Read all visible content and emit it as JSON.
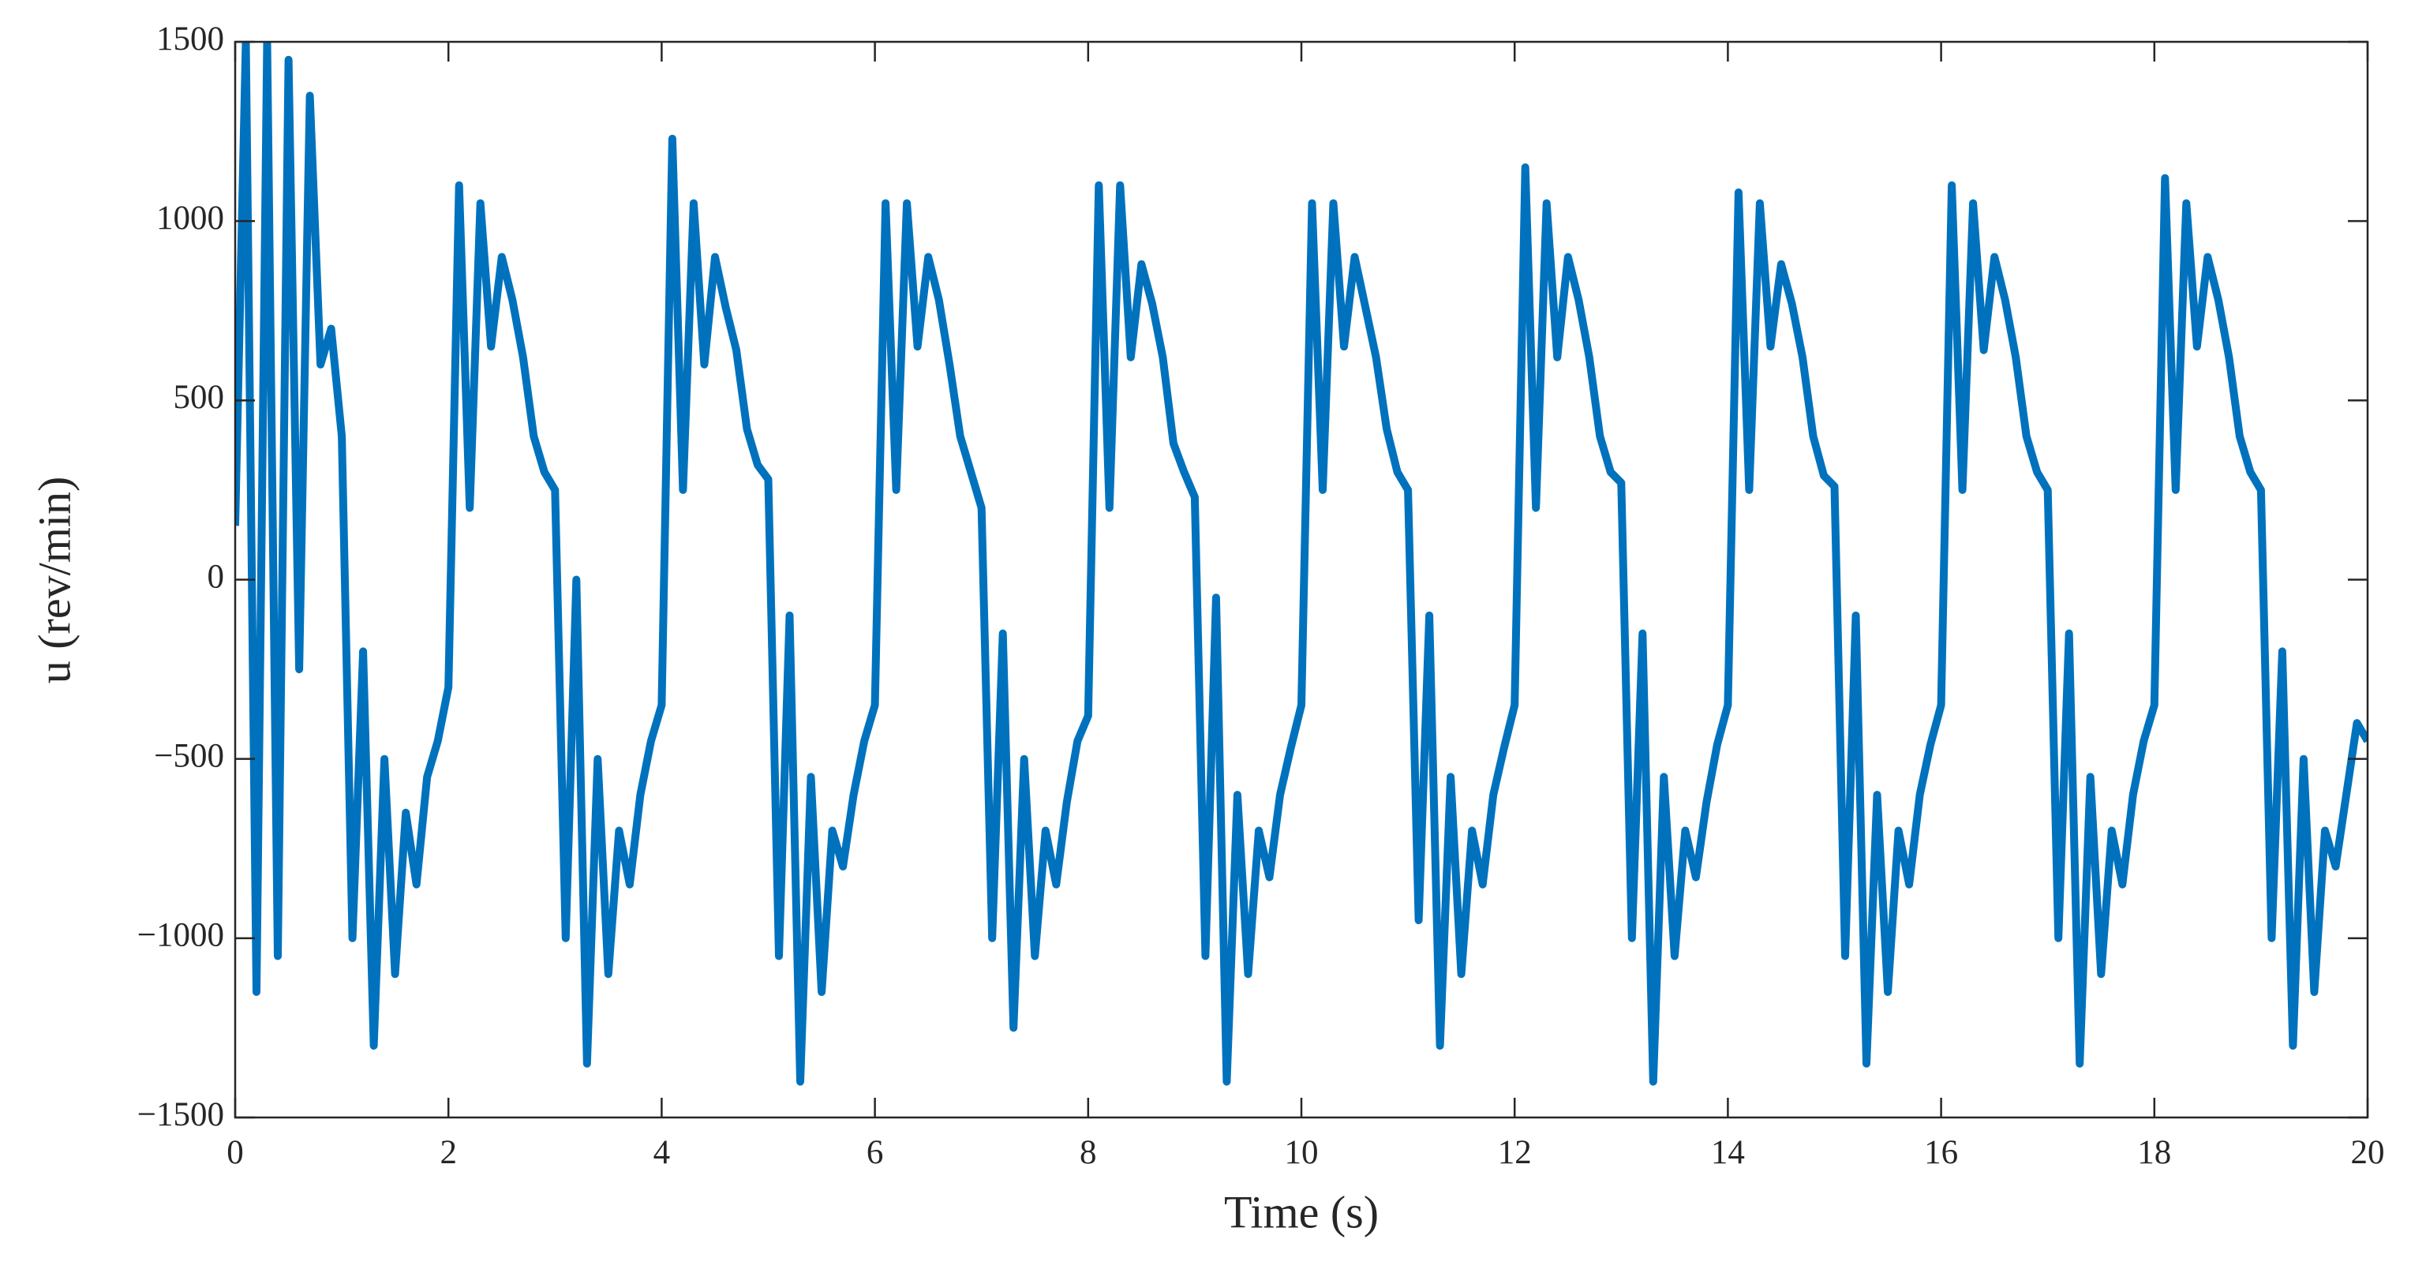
{
  "chart_data": {
    "type": "line",
    "xlabel": "Time (s)",
    "ylabel": "u (rev/min)",
    "color": "#0072bd",
    "xlim": [
      0,
      20
    ],
    "xticks": [
      0,
      2,
      4,
      6,
      8,
      10,
      12,
      14,
      16,
      18,
      20
    ],
    "ylim": [
      -1500,
      1500
    ],
    "yticks": [
      {
        "value": -1500,
        "label": "−1500"
      },
      {
        "value": -1000,
        "label": "−1000"
      },
      {
        "value": -500,
        "label": "−500"
      },
      0,
      500,
      1000,
      1500
    ],
    "x": [
      0,
      0.1,
      0.2,
      0.3,
      0.4,
      0.5,
      0.6,
      0.7,
      0.8,
      0.9,
      1,
      1.1,
      1.2,
      1.3,
      1.4,
      1.5,
      1.6,
      1.7,
      1.8,
      1.9,
      2,
      2.1,
      2.2,
      2.3,
      2.4,
      2.5,
      2.6,
      2.7,
      2.8,
      2.9,
      3,
      3.1,
      3.2,
      3.3,
      3.4,
      3.5,
      3.6,
      3.7,
      3.8,
      3.9,
      4,
      4.1,
      4.2,
      4.3,
      4.4,
      4.5,
      4.6,
      4.7,
      4.8,
      4.9,
      5,
      5.1,
      5.2,
      5.3,
      5.4,
      5.5,
      5.6,
      5.7,
      5.8,
      5.9,
      6,
      6.1,
      6.2,
      6.3,
      6.4,
      6.5,
      6.6,
      6.7,
      6.8,
      6.9,
      7,
      7.1,
      7.2,
      7.3,
      7.4,
      7.5,
      7.6,
      7.7,
      7.8,
      7.9,
      8,
      8.1,
      8.2,
      8.3,
      8.4,
      8.5,
      8.6,
      8.7,
      8.8,
      8.9,
      9,
      9.1,
      9.2,
      9.3,
      9.4,
      9.5,
      9.6,
      9.7,
      9.8,
      9.9,
      10,
      10.1,
      10.2,
      10.3,
      10.4,
      10.5,
      10.6,
      10.7,
      10.8,
      10.9,
      11,
      11.1,
      11.2,
      11.3,
      11.4,
      11.5,
      11.6,
      11.7,
      11.8,
      11.9,
      12,
      12.1,
      12.2,
      12.3,
      12.4,
      12.5,
      12.6,
      12.7,
      12.8,
      12.9,
      13,
      13.1,
      13.2,
      13.3,
      13.4,
      13.5,
      13.6,
      13.7,
      13.8,
      13.9,
      14,
      14.1,
      14.2,
      14.3,
      14.4,
      14.5,
      14.6,
      14.7,
      14.8,
      14.9,
      15,
      15.1,
      15.2,
      15.3,
      15.4,
      15.5,
      15.6,
      15.7,
      15.8,
      15.9,
      16,
      16.1,
      16.2,
      16.3,
      16.4,
      16.5,
      16.6,
      16.7,
      16.8,
      16.9,
      17,
      17.1,
      17.2,
      17.3,
      17.4,
      17.5,
      17.6,
      17.7,
      17.8,
      17.9,
      18,
      18.1,
      18.2,
      18.3,
      18.4,
      18.5,
      18.6,
      18.7,
      18.8,
      18.9,
      19,
      19.1,
      19.2,
      19.3,
      19.4,
      19.5,
      19.6,
      19.7,
      19.8,
      19.9,
      20
    ],
    "values": [
      150,
      1500,
      -1150,
      1500,
      -1050,
      1450,
      -250,
      1350,
      600,
      700,
      400,
      -1000,
      -200,
      -1300,
      -500,
      -1100,
      -650,
      -850,
      -550,
      -450,
      -300,
      1100,
      200,
      1050,
      650,
      900,
      780,
      620,
      400,
      300,
      250,
      -1000,
      0,
      -1350,
      -500,
      -1100,
      -700,
      -850,
      -600,
      -450,
      -350,
      1230,
      250,
      1050,
      600,
      900,
      760,
      640,
      420,
      320,
      280,
      -1050,
      -100,
      -1400,
      -550,
      -1150,
      -700,
      -800,
      -600,
      -450,
      -350,
      1050,
      250,
      1050,
      650,
      900,
      780,
      600,
      400,
      300,
      200,
      -1000,
      -150,
      -1250,
      -500,
      -1050,
      -700,
      -850,
      -620,
      -450,
      -380,
      1100,
      200,
      1100,
      620,
      880,
      770,
      620,
      380,
      300,
      230,
      -1050,
      -50,
      -1400,
      -600,
      -1100,
      -700,
      -830,
      -600,
      -470,
      -350,
      1050,
      250,
      1050,
      650,
      900,
      760,
      620,
      420,
      300,
      250,
      -950,
      -100,
      -1300,
      -550,
      -1100,
      -700,
      -850,
      -600,
      -470,
      -350,
      1150,
      200,
      1050,
      620,
      900,
      780,
      620,
      400,
      300,
      270,
      -1000,
      -150,
      -1400,
      -550,
      -1050,
      -700,
      -830,
      -620,
      -460,
      -350,
      1080,
      250,
      1050,
      650,
      880,
      770,
      620,
      400,
      290,
      260,
      -1050,
      -100,
      -1350,
      -600,
      -1150,
      -700,
      -850,
      -600,
      -460,
      -350,
      1100,
      250,
      1050,
      640,
      900,
      780,
      620,
      400,
      300,
      250,
      -1000,
      -150,
      -1350,
      -550,
      -1100,
      -700,
      -850,
      -600,
      -450,
      -350,
      1120,
      250,
      1050,
      650,
      900,
      780,
      620,
      400,
      300,
      250,
      -1000,
      -200,
      -1300,
      -500,
      -1150,
      -700,
      -800,
      -600,
      -400,
      -450
    ]
  }
}
